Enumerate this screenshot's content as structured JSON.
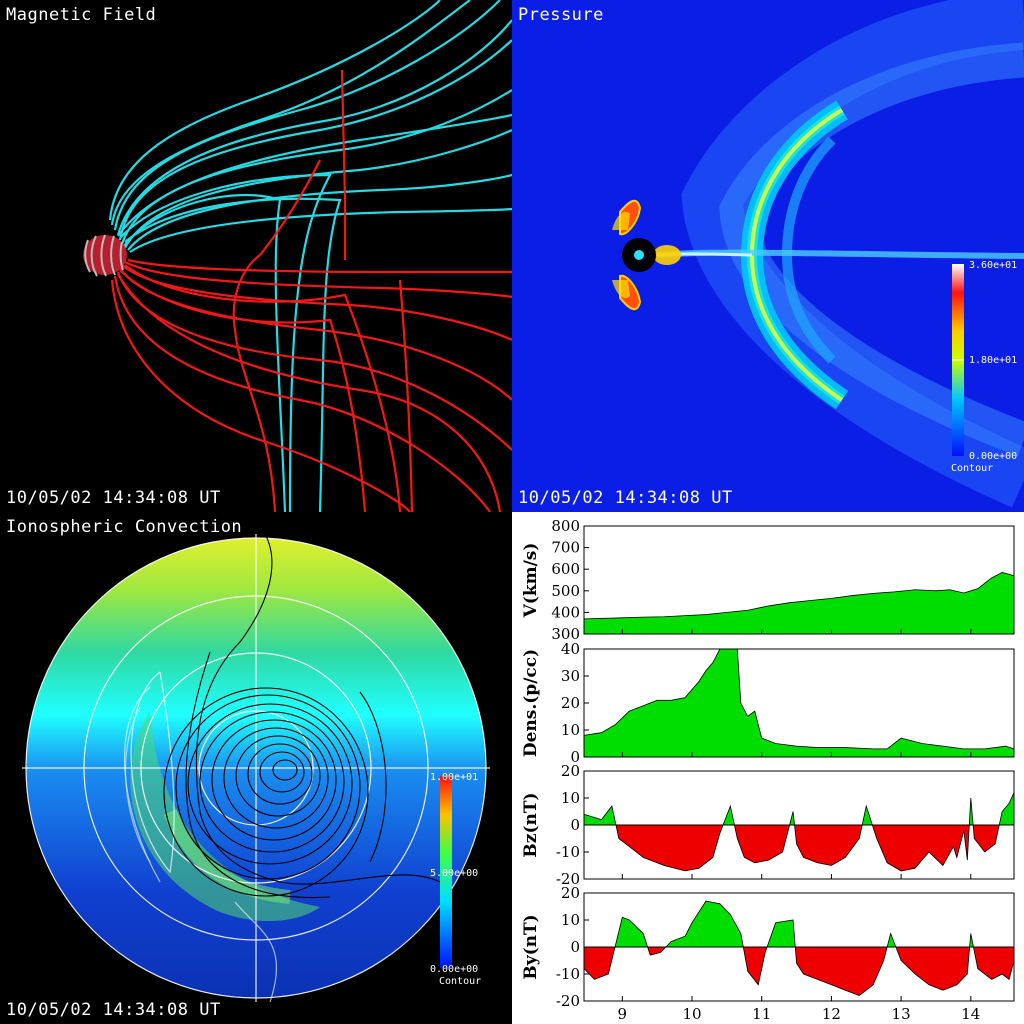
{
  "panels": {
    "magnetic": {
      "title": "Magnetic Field",
      "timestamp": "10/05/02 14:34:08 UT"
    },
    "pressure": {
      "title": "Pressure",
      "timestamp": "10/05/02 14:34:08 UT",
      "colorbar": {
        "max": "3.60e+01",
        "mid": "1.80e+01",
        "min": "0.00e+00",
        "label": "Contour"
      }
    },
    "ionosphere": {
      "title": "Ionospheric Convection",
      "timestamp": "10/05/02 14:34:08 UT",
      "colorbar": {
        "max": "1.00e+01",
        "mid": "5.00e+00",
        "min": "0.00e+00",
        "label": "Contour"
      }
    }
  },
  "chart_data": {
    "type": "area",
    "x_range": [
      8.45,
      14.62
    ],
    "x_ticks": [
      9,
      10,
      11,
      12,
      13,
      14
    ],
    "colors": {
      "positive": "#00dd00",
      "negative": "#ee0000"
    },
    "series": [
      {
        "ylabel": "V(km/s)",
        "ylim": [
          300,
          800
        ],
        "yticks": [
          300,
          400,
          500,
          600,
          700,
          800
        ],
        "baseline": 300,
        "x": [
          8.45,
          8.7,
          9.0,
          9.3,
          9.6,
          9.9,
          10.2,
          10.5,
          10.8,
          11.1,
          11.4,
          11.7,
          12.0,
          12.3,
          12.6,
          12.9,
          13.2,
          13.5,
          13.7,
          13.9,
          14.1,
          14.3,
          14.45,
          14.62
        ],
        "y": [
          370,
          372,
          375,
          378,
          380,
          385,
          390,
          400,
          410,
          430,
          445,
          455,
          465,
          478,
          488,
          495,
          505,
          500,
          505,
          490,
          510,
          560,
          585,
          570
        ]
      },
      {
        "ylabel": "Dens.(p/cc)",
        "ylim": [
          0,
          40
        ],
        "yticks": [
          0,
          10,
          20,
          30,
          40
        ],
        "baseline": 0,
        "x": [
          8.45,
          8.7,
          8.9,
          9.1,
          9.3,
          9.5,
          9.7,
          9.9,
          10.0,
          10.1,
          10.2,
          10.3,
          10.4,
          10.55,
          10.65,
          10.7,
          10.8,
          10.9,
          11.0,
          11.2,
          11.5,
          11.8,
          12.2,
          12.6,
          12.8,
          13.0,
          13.3,
          13.6,
          13.9,
          14.2,
          14.5,
          14.62
        ],
        "y": [
          8,
          9,
          12,
          17,
          19,
          21,
          21,
          22,
          25,
          28,
          32,
          35,
          40,
          40,
          40,
          20,
          15,
          17,
          7,
          5,
          4,
          3.5,
          3.5,
          3,
          3,
          7,
          5,
          4,
          3,
          3,
          4,
          3
        ]
      },
      {
        "ylabel": "Bz(nT)",
        "ylim": [
          -20,
          20
        ],
        "yticks": [
          -20,
          -10,
          0,
          10,
          20
        ],
        "baseline": 0,
        "x": [
          8.45,
          8.7,
          8.85,
          8.95,
          9.1,
          9.3,
          9.6,
          9.9,
          10.1,
          10.3,
          10.4,
          10.55,
          10.65,
          10.75,
          10.9,
          11.1,
          11.3,
          11.45,
          11.5,
          11.6,
          11.8,
          12.0,
          12.2,
          12.4,
          12.5,
          12.65,
          12.8,
          13.0,
          13.2,
          13.4,
          13.6,
          13.75,
          13.8,
          13.9,
          13.95,
          14.0,
          14.05,
          14.2,
          14.35,
          14.45,
          14.55,
          14.62
        ],
        "y": [
          4,
          2,
          7,
          -5,
          -8,
          -12,
          -15,
          -17,
          -16,
          -12,
          -3,
          7,
          -5,
          -12,
          -14,
          -13,
          -10,
          5,
          -7,
          -12,
          -14,
          -15,
          -12,
          -5,
          7,
          -5,
          -14,
          -17,
          -16,
          -10,
          -15,
          -8,
          -12,
          -2,
          -13,
          10,
          -5,
          -10,
          -7,
          5,
          8,
          12
        ]
      },
      {
        "ylabel": "By(nT)",
        "ylim": [
          -20,
          20
        ],
        "yticks": [
          -20,
          -10,
          0,
          10,
          20
        ],
        "baseline": 0,
        "x": [
          8.45,
          8.6,
          8.8,
          9.0,
          9.1,
          9.3,
          9.4,
          9.55,
          9.7,
          9.9,
          10.0,
          10.2,
          10.4,
          10.55,
          10.7,
          10.8,
          10.95,
          11.05,
          11.2,
          11.45,
          11.5,
          11.6,
          11.8,
          12.0,
          12.2,
          12.4,
          12.6,
          12.75,
          12.85,
          13.0,
          13.2,
          13.4,
          13.6,
          13.8,
          13.95,
          14.0,
          14.1,
          14.3,
          14.45,
          14.55,
          14.62
        ],
        "y": [
          -8,
          -12,
          -10,
          11,
          10,
          5,
          -3,
          -2,
          2,
          4,
          9,
          17,
          16,
          12,
          5,
          -9,
          -14,
          -2,
          9,
          10,
          -6,
          -10,
          -12,
          -14,
          -16,
          -18,
          -14,
          -5,
          5,
          -5,
          -10,
          -14,
          -16,
          -14,
          -10,
          5,
          -8,
          -12,
          -10,
          -12,
          -5
        ]
      }
    ]
  }
}
